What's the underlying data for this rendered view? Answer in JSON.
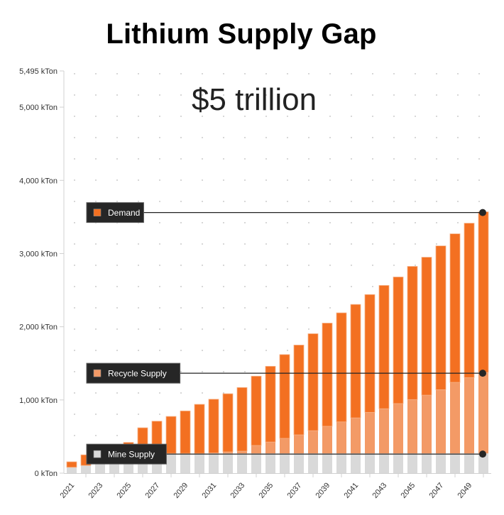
{
  "chart_data": {
    "type": "bar",
    "stacked": true,
    "title": "Lithium Supply Gap",
    "annotation": "$5 trillion",
    "xlabel": "",
    "ylabel": "",
    "ylim": [
      0,
      5495
    ],
    "yticks": [
      0,
      1000,
      2000,
      3000,
      4000,
      5000,
      5495
    ],
    "ytick_labels": [
      "0 kTon",
      "1,000 kTon",
      "2,000 kTon",
      "3,000 kTon",
      "4,000 kTon",
      "5,000 kTon",
      "5,495 kTon"
    ],
    "categories": [
      "2021",
      "2022",
      "2023",
      "2024",
      "2025",
      "2026",
      "2027",
      "2028",
      "2029",
      "2030",
      "2031",
      "2032",
      "2033",
      "2034",
      "2035",
      "2036",
      "2037",
      "2038",
      "2039",
      "2040",
      "2041",
      "2042",
      "2043",
      "2044",
      "2045",
      "2046",
      "2047",
      "2048",
      "2049",
      "2050"
    ],
    "xtick_labels": [
      "2021",
      "2023",
      "2025",
      "2027",
      "2029",
      "2031",
      "2033",
      "2035",
      "2037",
      "2039",
      "2041",
      "2043",
      "2045",
      "2047",
      "2049"
    ],
    "grid": "dotted",
    "series": [
      {
        "name": "Mine Supply",
        "color": "#d9d9d9",
        "values": [
          80,
          105,
          140,
          175,
          215,
          240,
          250,
          270,
          270,
          270,
          270,
          270,
          270,
          270,
          270,
          270,
          270,
          270,
          270,
          270,
          270,
          270,
          270,
          270,
          270,
          270,
          270,
          270,
          270,
          270
        ]
      },
      {
        "name": "Recycle Supply",
        "color": "#f39a66",
        "values": [
          0,
          0,
          0,
          0,
          0,
          0,
          0,
          0,
          0,
          0,
          5,
          20,
          30,
          108,
          155,
          205,
          253,
          310,
          370,
          430,
          485,
          560,
          610,
          680,
          735,
          795,
          870,
          970,
          1035,
          1105
        ]
      },
      {
        "name": "Demand",
        "color": "#f37021",
        "values": [
          75,
          145,
          120,
          155,
          205,
          380,
          460,
          505,
          580,
          670,
          735,
          795,
          870,
          947,
          1035,
          1145,
          1227,
          1325,
          1410,
          1490,
          1550,
          1610,
          1685,
          1730,
          1820,
          1885,
          1965,
          2030,
          2110,
          2195
        ]
      }
    ],
    "totals": [
      155,
      250,
      260,
      330,
      420,
      620,
      710,
      775,
      850,
      940,
      1010,
      1085,
      1170,
      1325,
      1460,
      1620,
      1750,
      1905,
      2050,
      2190,
      2305,
      2440,
      2565,
      2680,
      2825,
      2950,
      3105,
      3270,
      3415,
      3570
    ],
    "legend": [
      {
        "label": "Demand",
        "color": "#f37021",
        "level": 3570
      },
      {
        "label": "Recycle Supply",
        "color": "#f39a66",
        "level": 1375
      },
      {
        "label": "Mine Supply",
        "color": "#d9d9d9",
        "level": 270
      }
    ],
    "legend_placement": "left, inline with series levels"
  }
}
